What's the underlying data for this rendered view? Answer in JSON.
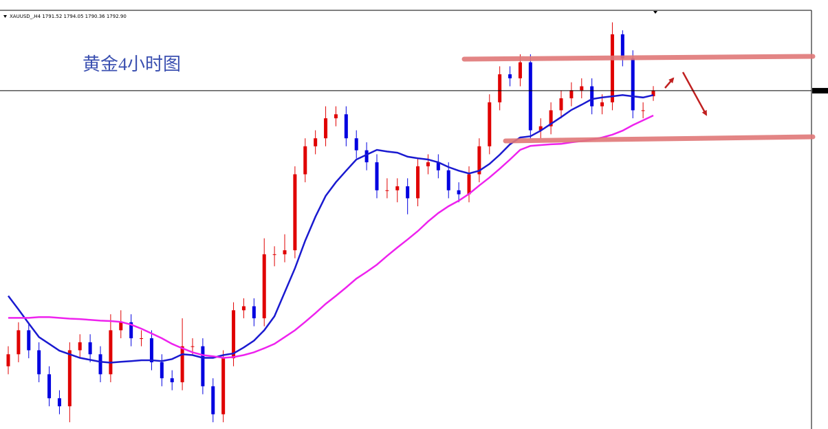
{
  "chart_data": {
    "type": "candlestick",
    "header": "XAUUSD_,H4  1791.52 1794.05 1790.36 1792.90",
    "title": "黄金4小时图",
    "categories": [
      null,
      null,
      null,
      null,
      null,
      null,
      null,
      null,
      null,
      null,
      null,
      null,
      null,
      null,
      null,
      null,
      null,
      null,
      null,
      null,
      null,
      null,
      null,
      null,
      null,
      null,
      null,
      null,
      null,
      null,
      null,
      null,
      null,
      null,
      null,
      null,
      null,
      null,
      null,
      null,
      null,
      null,
      null,
      null,
      null,
      null,
      null,
      null,
      null,
      null,
      null,
      null,
      null,
      null,
      null,
      null,
      null,
      null,
      null,
      null,
      null,
      null,
      null,
      null
    ],
    "open": [
      1724,
      1727,
      1733,
      1728,
      1722,
      1716,
      1714,
      1728,
      1730,
      1727,
      1722,
      1733,
      1735,
      1731,
      1731,
      1725,
      1721,
      1720,
      1729,
      1729,
      1719,
      1712,
      1726,
      1738,
      1739,
      1736,
      1752,
      1752,
      1753,
      1772,
      1779,
      1781,
      1786,
      1787,
      1781,
      1778,
      1775,
      1768,
      1768,
      1769,
      1766,
      1774,
      1775,
      1773,
      1768,
      1767,
      1772,
      1779,
      1790,
      1797,
      1796,
      1800,
      1783,
      1784,
      1788,
      1791,
      1793,
      1794,
      1789,
      1790,
      1807,
      1801,
      1788,
      1791.52
    ],
    "high": [
      1729,
      1735,
      1735,
      1730,
      1724,
      1718,
      1730,
      1732,
      1732,
      1729,
      1737,
      1738,
      1737,
      1733,
      1733,
      1727,
      1723,
      1736,
      1731,
      1731,
      1721,
      1728,
      1740,
      1741,
      1741,
      1756,
      1754,
      1757,
      1774,
      1781,
      1783,
      1789,
      1789,
      1789,
      1783,
      1780,
      1777,
      1771,
      1771,
      1771,
      1776,
      1777,
      1777,
      1775,
      1770,
      1774,
      1781,
      1792,
      1799,
      1799,
      1802,
      1802,
      1786,
      1790,
      1793,
      1795,
      1796,
      1796,
      1792,
      1810,
      1808,
      1803,
      1790,
      1794.05
    ],
    "low": [
      1722,
      1725,
      1726,
      1720,
      1714,
      1712,
      1710,
      1726,
      1725,
      1720,
      1720,
      1731,
      1729,
      1729,
      1723,
      1719,
      1718,
      1718,
      1727,
      1717,
      1710,
      1710,
      1724,
      1736,
      1734,
      1734,
      1749,
      1750,
      1751,
      1770,
      1777,
      1779,
      1784,
      1779,
      1776,
      1773,
      1766,
      1766,
      1765,
      1762,
      1764,
      1772,
      1771,
      1766,
      1765,
      1765,
      1770,
      1777,
      1788,
      1794,
      1794,
      1781,
      1781,
      1782,
      1786,
      1789,
      1791,
      1787,
      1787,
      1788,
      1799,
      1786,
      1786,
      1790.36
    ],
    "close": [
      1727,
      1733,
      1728,
      1722,
      1716,
      1714,
      1728,
      1730,
      1727,
      1722,
      1733,
      1735,
      1731,
      1731,
      1725,
      1721,
      1720,
      1729,
      1729,
      1719,
      1712,
      1726,
      1738,
      1739,
      1736,
      1752,
      1752,
      1753,
      1772,
      1779,
      1781,
      1786,
      1787,
      1781,
      1778,
      1775,
      1768,
      1768,
      1769,
      1766,
      1774,
      1775,
      1773,
      1768,
      1767,
      1772,
      1779,
      1790,
      1797,
      1796,
      1800,
      1783,
      1784,
      1788,
      1791,
      1793,
      1794,
      1789,
      1790,
      1807,
      1801,
      1788,
      1788,
      1792.9
    ],
    "up_color": "#e00000",
    "down_color": "#0000e0",
    "lines": [
      {
        "color": "#1a1ad0",
        "values": [
          1741.6,
          1738.2,
          1734.7,
          1731.3,
          1729.6,
          1727.9,
          1727,
          1726.1,
          1725.6,
          1725.1,
          1724.9,
          1725.1,
          1725.3,
          1725.5,
          1725.5,
          1725.3,
          1725.8,
          1727,
          1726.8,
          1726.1,
          1726.1,
          1726.8,
          1727.2,
          1728.7,
          1730.4,
          1733,
          1736.5,
          1742.5,
          1748.5,
          1755.4,
          1761.4,
          1766.6,
          1770,
          1772.9,
          1775.7,
          1776.9,
          1778.1,
          1777.7,
          1777.4,
          1776.4,
          1776,
          1775.7,
          1775,
          1773.8,
          1772.9,
          1772.2,
          1772.9,
          1774.6,
          1776.9,
          1779.5,
          1781.2,
          1781.5,
          1782.9,
          1784.6,
          1786.3,
          1788.1,
          1789.4,
          1790.8,
          1791.2,
          1791.5,
          1791.8,
          1791.5,
          1791.2,
          1791.8
        ]
      },
      {
        "color": "#ee22ee",
        "values": [
          1736.1,
          1736.1,
          1736.1,
          1736.3,
          1736.3,
          1736.1,
          1735.9,
          1735.8,
          1735.6,
          1735.4,
          1735.3,
          1735.1,
          1734.4,
          1733.4,
          1732.2,
          1731,
          1729.6,
          1728.5,
          1727.5,
          1726.8,
          1726.5,
          1726.1,
          1726.3,
          1726.8,
          1727.5,
          1728.5,
          1729.6,
          1731.3,
          1733,
          1735.1,
          1737.3,
          1739.6,
          1741.6,
          1743.7,
          1745.9,
          1747.6,
          1749.4,
          1751.6,
          1753.7,
          1755.7,
          1757.8,
          1760.2,
          1762.3,
          1764,
          1765.4,
          1767.1,
          1769.2,
          1771.2,
          1773.4,
          1775.7,
          1778.1,
          1779.1,
          1779.3,
          1779.5,
          1779.6,
          1780,
          1780.3,
          1780.7,
          1781.2,
          1781.9,
          1782.9,
          1784.3,
          1785.5,
          1786.7
        ]
      }
    ],
    "ylim": [
      1709,
      1813
    ]
  }
}
